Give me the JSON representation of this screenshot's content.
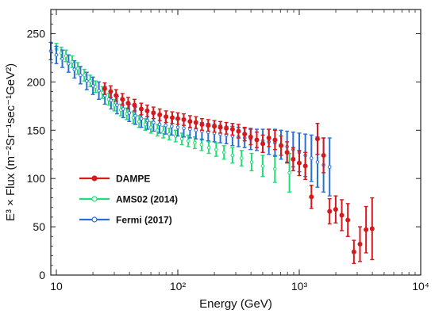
{
  "chart_data": {
    "type": "scatter",
    "title": "",
    "xlabel": "Energy (GeV)",
    "ylabel": "E³ × Flux  (m⁻²Sr⁻¹sec⁻¹GeV²)",
    "xscale": "log",
    "xlim": [
      9,
      10000
    ],
    "ylim": [
      0,
      275
    ],
    "xticks": [
      {
        "value": 10,
        "label": "10"
      },
      {
        "value": 100,
        "label": "10²"
      },
      {
        "value": 1000,
        "label": "10³"
      },
      {
        "value": 10000,
        "label": "10⁴"
      }
    ],
    "yticks": [
      0,
      50,
      100,
      150,
      200,
      250
    ],
    "legend_position": "center-left",
    "series": [
      {
        "name": "DAMPE",
        "color": "#d7191c",
        "points": [
          {
            "x": 25,
            "y": 193,
            "err": 6
          },
          {
            "x": 28,
            "y": 190,
            "err": 6
          },
          {
            "x": 31,
            "y": 186,
            "err": 6
          },
          {
            "x": 35,
            "y": 182,
            "err": 6
          },
          {
            "x": 39,
            "y": 178,
            "err": 6
          },
          {
            "x": 44,
            "y": 176,
            "err": 6
          },
          {
            "x": 50,
            "y": 172,
            "err": 6
          },
          {
            "x": 56,
            "y": 170,
            "err": 6
          },
          {
            "x": 63,
            "y": 168,
            "err": 6
          },
          {
            "x": 71,
            "y": 166,
            "err": 6
          },
          {
            "x": 80,
            "y": 164,
            "err": 6
          },
          {
            "x": 90,
            "y": 163,
            "err": 6
          },
          {
            "x": 100,
            "y": 162,
            "err": 6
          },
          {
            "x": 112,
            "y": 161,
            "err": 6
          },
          {
            "x": 126,
            "y": 159,
            "err": 6
          },
          {
            "x": 141,
            "y": 158,
            "err": 6
          },
          {
            "x": 158,
            "y": 156,
            "err": 6
          },
          {
            "x": 178,
            "y": 155,
            "err": 6
          },
          {
            "x": 200,
            "y": 154,
            "err": 6
          },
          {
            "x": 224,
            "y": 153,
            "err": 6
          },
          {
            "x": 251,
            "y": 152,
            "err": 6
          },
          {
            "x": 282,
            "y": 151,
            "err": 6
          },
          {
            "x": 316,
            "y": 149,
            "err": 7
          },
          {
            "x": 355,
            "y": 146,
            "err": 7
          },
          {
            "x": 398,
            "y": 143,
            "err": 8
          },
          {
            "x": 447,
            "y": 140,
            "err": 8
          },
          {
            "x": 501,
            "y": 136,
            "err": 9
          },
          {
            "x": 562,
            "y": 142,
            "err": 9
          },
          {
            "x": 631,
            "y": 140,
            "err": 10
          },
          {
            "x": 708,
            "y": 134,
            "err": 10
          },
          {
            "x": 794,
            "y": 127,
            "err": 11
          },
          {
            "x": 891,
            "y": 120,
            "err": 12
          },
          {
            "x": 1000,
            "y": 116,
            "err": 13
          },
          {
            "x": 1122,
            "y": 113,
            "err": 14
          },
          {
            "x": 1259,
            "y": 81,
            "err": 12
          },
          {
            "x": 1413,
            "y": 141,
            "err": 16
          },
          {
            "x": 1585,
            "y": 124,
            "err": 18
          },
          {
            "x": 1778,
            "y": 66,
            "err": 13
          },
          {
            "x": 1995,
            "y": 68,
            "err": 14
          },
          {
            "x": 2239,
            "y": 62,
            "err": 16
          },
          {
            "x": 2512,
            "y": 57,
            "err": 17
          },
          {
            "x": 2818,
            "y": 24,
            "err": 12
          },
          {
            "x": 3162,
            "y": 32,
            "err": 18
          },
          {
            "x": 3548,
            "y": 47,
            "err": 24
          },
          {
            "x": 3981,
            "y": 48,
            "err": 32
          }
        ]
      },
      {
        "name": "AMS02 (2014)",
        "color": "#22dd77",
        "points": [
          {
            "x": 10,
            "y": 234,
            "err": 6
          },
          {
            "x": 11,
            "y": 230,
            "err": 6
          },
          {
            "x": 12,
            "y": 227,
            "err": 6
          },
          {
            "x": 13.5,
            "y": 221,
            "err": 6
          },
          {
            "x": 15,
            "y": 214,
            "err": 6
          },
          {
            "x": 17,
            "y": 207,
            "err": 6
          },
          {
            "x": 19,
            "y": 201,
            "err": 6
          },
          {
            "x": 21,
            "y": 195,
            "err": 6
          },
          {
            "x": 24,
            "y": 189,
            "err": 6
          },
          {
            "x": 27,
            "y": 182,
            "err": 6
          },
          {
            "x": 30,
            "y": 176,
            "err": 6
          },
          {
            "x": 34,
            "y": 171,
            "err": 6
          },
          {
            "x": 38,
            "y": 167,
            "err": 6
          },
          {
            "x": 43,
            "y": 163,
            "err": 6
          },
          {
            "x": 48,
            "y": 159,
            "err": 6
          },
          {
            "x": 54,
            "y": 156,
            "err": 6
          },
          {
            "x": 60,
            "y": 153,
            "err": 6
          },
          {
            "x": 68,
            "y": 150,
            "err": 6
          },
          {
            "x": 76,
            "y": 148,
            "err": 6
          },
          {
            "x": 85,
            "y": 146,
            "err": 6
          },
          {
            "x": 96,
            "y": 144,
            "err": 6
          },
          {
            "x": 108,
            "y": 141,
            "err": 6
          },
          {
            "x": 122,
            "y": 139,
            "err": 6
          },
          {
            "x": 138,
            "y": 137,
            "err": 6
          },
          {
            "x": 157,
            "y": 135,
            "err": 6
          },
          {
            "x": 180,
            "y": 132,
            "err": 6
          },
          {
            "x": 207,
            "y": 130,
            "err": 7
          },
          {
            "x": 240,
            "y": 127,
            "err": 7
          },
          {
            "x": 282,
            "y": 124,
            "err": 8
          },
          {
            "x": 335,
            "y": 121,
            "err": 8
          },
          {
            "x": 405,
            "y": 117,
            "err": 9
          },
          {
            "x": 500,
            "y": 113,
            "err": 11
          },
          {
            "x": 630,
            "y": 110,
            "err": 14
          },
          {
            "x": 830,
            "y": 106,
            "err": 20
          }
        ]
      },
      {
        "name": "Fermi (2017)",
        "color": "#2a6fd6",
        "points": [
          {
            "x": 9,
            "y": 232,
            "err": 9
          },
          {
            "x": 10,
            "y": 228,
            "err": 9
          },
          {
            "x": 11.2,
            "y": 224,
            "err": 9
          },
          {
            "x": 12.6,
            "y": 219,
            "err": 9
          },
          {
            "x": 14.1,
            "y": 213,
            "err": 9
          },
          {
            "x": 15.8,
            "y": 207,
            "err": 9
          },
          {
            "x": 17.8,
            "y": 201,
            "err": 9
          },
          {
            "x": 20,
            "y": 196,
            "err": 9
          },
          {
            "x": 22.4,
            "y": 191,
            "err": 9
          },
          {
            "x": 25.1,
            "y": 186,
            "err": 9
          },
          {
            "x": 28.2,
            "y": 181,
            "err": 9
          },
          {
            "x": 31.6,
            "y": 176,
            "err": 9
          },
          {
            "x": 35.5,
            "y": 172,
            "err": 9
          },
          {
            "x": 39.8,
            "y": 168,
            "err": 9
          },
          {
            "x": 44.7,
            "y": 165,
            "err": 9
          },
          {
            "x": 50.1,
            "y": 162,
            "err": 9
          },
          {
            "x": 56.2,
            "y": 160,
            "err": 9
          },
          {
            "x": 63.1,
            "y": 158,
            "err": 9
          },
          {
            "x": 70.8,
            "y": 156,
            "err": 9
          },
          {
            "x": 79.4,
            "y": 155,
            "err": 9
          },
          {
            "x": 89.1,
            "y": 154,
            "err": 9
          },
          {
            "x": 100,
            "y": 153,
            "err": 9
          },
          {
            "x": 112,
            "y": 152,
            "err": 9
          },
          {
            "x": 126,
            "y": 151,
            "err": 9
          },
          {
            "x": 141,
            "y": 150,
            "err": 9
          },
          {
            "x": 158,
            "y": 149,
            "err": 9
          },
          {
            "x": 178,
            "y": 148,
            "err": 9
          },
          {
            "x": 200,
            "y": 147,
            "err": 9
          },
          {
            "x": 224,
            "y": 146,
            "err": 9
          },
          {
            "x": 251,
            "y": 145,
            "err": 9
          },
          {
            "x": 282,
            "y": 144,
            "err": 10
          },
          {
            "x": 316,
            "y": 143,
            "err": 10
          },
          {
            "x": 355,
            "y": 142,
            "err": 10
          },
          {
            "x": 398,
            "y": 141,
            "err": 11
          },
          {
            "x": 447,
            "y": 140,
            "err": 11
          },
          {
            "x": 501,
            "y": 139,
            "err": 12
          },
          {
            "x": 562,
            "y": 138,
            "err": 13
          },
          {
            "x": 631,
            "y": 137,
            "err": 14
          },
          {
            "x": 708,
            "y": 135,
            "err": 15
          },
          {
            "x": 794,
            "y": 133,
            "err": 16
          },
          {
            "x": 891,
            "y": 130,
            "err": 18
          },
          {
            "x": 1000,
            "y": 127,
            "err": 20
          },
          {
            "x": 1122,
            "y": 124,
            "err": 22
          },
          {
            "x": 1259,
            "y": 121,
            "err": 24
          },
          {
            "x": 1413,
            "y": 117,
            "err": 26
          },
          {
            "x": 1585,
            "y": 114,
            "err": 28
          },
          {
            "x": 1778,
            "y": 112,
            "err": 30
          }
        ]
      }
    ]
  }
}
